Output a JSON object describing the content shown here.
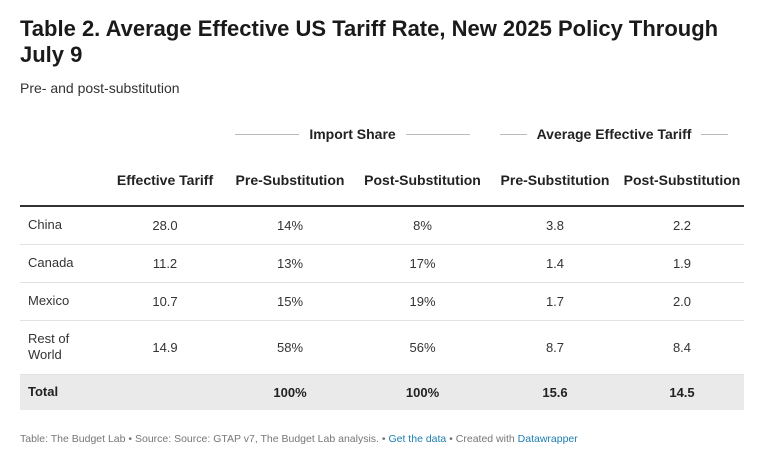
{
  "title": "Table 2. Average Effective US Tariff Rate, New 2025 Policy Through July 9",
  "subtitle": "Pre- and post-substitution",
  "group_headers": {
    "import_share": "Import Share",
    "avg_tariff": "Average Effective Tariff"
  },
  "columns": [
    "",
    "Effective Tariff",
    "Pre-Substitution",
    "Post-Substitution",
    "Pre-Substitution",
    "Post-Substitution"
  ],
  "rows": [
    {
      "country": "China",
      "effective_tariff": "28.0",
      "import_pre": "14%",
      "import_post": "8%",
      "tariff_pre": "3.8",
      "tariff_post": "2.2"
    },
    {
      "country": "Canada",
      "effective_tariff": "11.2",
      "import_pre": "13%",
      "import_post": "17%",
      "tariff_pre": "1.4",
      "tariff_post": "1.9"
    },
    {
      "country": "Mexico",
      "effective_tariff": "10.7",
      "import_pre": "15%",
      "import_post": "19%",
      "tariff_pre": "1.7",
      "tariff_post": "2.0"
    },
    {
      "country": "Rest of World",
      "effective_tariff": "14.9",
      "import_pre": "58%",
      "import_post": "56%",
      "tariff_pre": "8.7",
      "tariff_post": "8.4"
    }
  ],
  "total": {
    "label": "Total",
    "effective_tariff": "",
    "import_pre": "100%",
    "import_post": "100%",
    "tariff_pre": "15.6",
    "tariff_post": "14.5"
  },
  "footer": {
    "source": "Table: The Budget Lab • Source: Source: GTAP v7, The Budget Lab analysis. • ",
    "get_data": "Get the data",
    "created": " • Created with ",
    "datawrapper": "Datawrapper"
  },
  "chart_data": {
    "type": "table",
    "title": "Table 2. Average Effective US Tariff Rate, New 2025 Policy Through July 9",
    "subtitle": "Pre- and post-substitution",
    "column_groups": [
      {
        "name": "Import Share",
        "columns": [
          "Pre-Substitution",
          "Post-Substitution"
        ]
      },
      {
        "name": "Average Effective Tariff",
        "columns": [
          "Pre-Substitution",
          "Post-Substitution"
        ]
      }
    ],
    "columns": [
      "Effective Tariff",
      "Import Share Pre-Substitution",
      "Import Share Post-Substitution",
      "Average Effective Tariff Pre-Substitution",
      "Average Effective Tariff Post-Substitution"
    ],
    "rows": [
      "China",
      "Canada",
      "Mexico",
      "Rest of World",
      "Total"
    ],
    "values": [
      [
        28.0,
        14,
        8,
        3.8,
        2.2
      ],
      [
        11.2,
        13,
        17,
        1.4,
        1.9
      ],
      [
        10.7,
        15,
        19,
        1.7,
        2.0
      ],
      [
        14.9,
        58,
        56,
        8.7,
        8.4
      ],
      [
        null,
        100,
        100,
        15.6,
        14.5
      ]
    ]
  }
}
